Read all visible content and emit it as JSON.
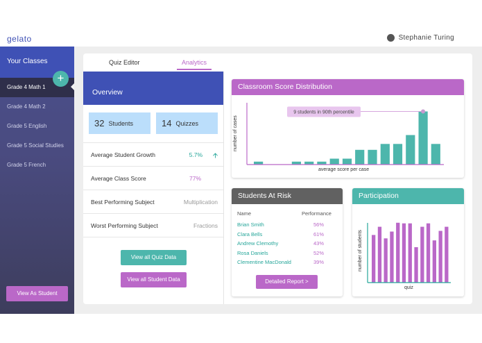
{
  "header": {
    "brand": "gelato",
    "user_name": "Stephanie Turing"
  },
  "sidebar": {
    "title": "Your Classes",
    "add_label": "+",
    "classes": [
      "Grade 4 Math 1",
      "Grade 4 Math 2",
      "Grade 5 English",
      "Grade 5 Social Studies",
      "Grade 5 French"
    ],
    "view_as_student": "View As Student"
  },
  "tabs": {
    "quiz_editor": "Quiz Editor",
    "analytics": "Analytics"
  },
  "overview": {
    "title": "Overview",
    "students_count": "32",
    "students_label": "Students",
    "quizzes_count": "14",
    "quizzes_label": "Quizzes",
    "metrics": [
      {
        "label": "Average Student Growth",
        "value": "5.7%"
      },
      {
        "label": "Average Class Score",
        "value": "77%"
      },
      {
        "label": "Best Performing Subject",
        "value": "Multiplication"
      },
      {
        "label": "Worst Performing Subject",
        "value": "Fractions"
      }
    ],
    "view_quiz_data": "View all Quiz Data",
    "view_student_data": "View all Student Data"
  },
  "distribution": {
    "title": "Classroom Score Distribution",
    "annotation": "9 students in 90th percentile",
    "colors": {
      "header": "#ba68c8",
      "bar": "#4db6ac"
    }
  },
  "at_risk": {
    "title": "Students At Risk",
    "col_name": "Name",
    "col_perf": "Performance",
    "rows": [
      {
        "name": "Brian Smith",
        "perf": "56%"
      },
      {
        "name": "Clara Bells",
        "perf": "61%"
      },
      {
        "name": "Andrew Clemothy",
        "perf": "43%"
      },
      {
        "name": "Rosa Daniels",
        "perf": "52%"
      },
      {
        "name": "Clementine MacDonald",
        "perf": "39%"
      }
    ],
    "detail_button": "Detailed Report >"
  },
  "participation": {
    "title": "Participation"
  },
  "chart_data": [
    {
      "type": "bar",
      "title": "Classroom Score Distribution",
      "xlabel": "average score per case",
      "ylabel": "number of cases",
      "ylim": [
        0,
        10
      ],
      "values": [
        0.5,
        0,
        0,
        0.5,
        0.5,
        0.5,
        1,
        1,
        2.5,
        2.5,
        3.5,
        3.5,
        5,
        9,
        3.5
      ],
      "highlight_index": 13,
      "annotation": "9 students in 90th percentile"
    },
    {
      "type": "bar",
      "title": "Participation",
      "xlabel": "quiz",
      "ylabel": "number of students",
      "ylim": [
        0,
        10
      ],
      "values": [
        7,
        8.2,
        6.5,
        7.5,
        8.8,
        8.7,
        8.7,
        5.2,
        8.2,
        8.7,
        6.2,
        7.6,
        8.2
      ]
    }
  ]
}
